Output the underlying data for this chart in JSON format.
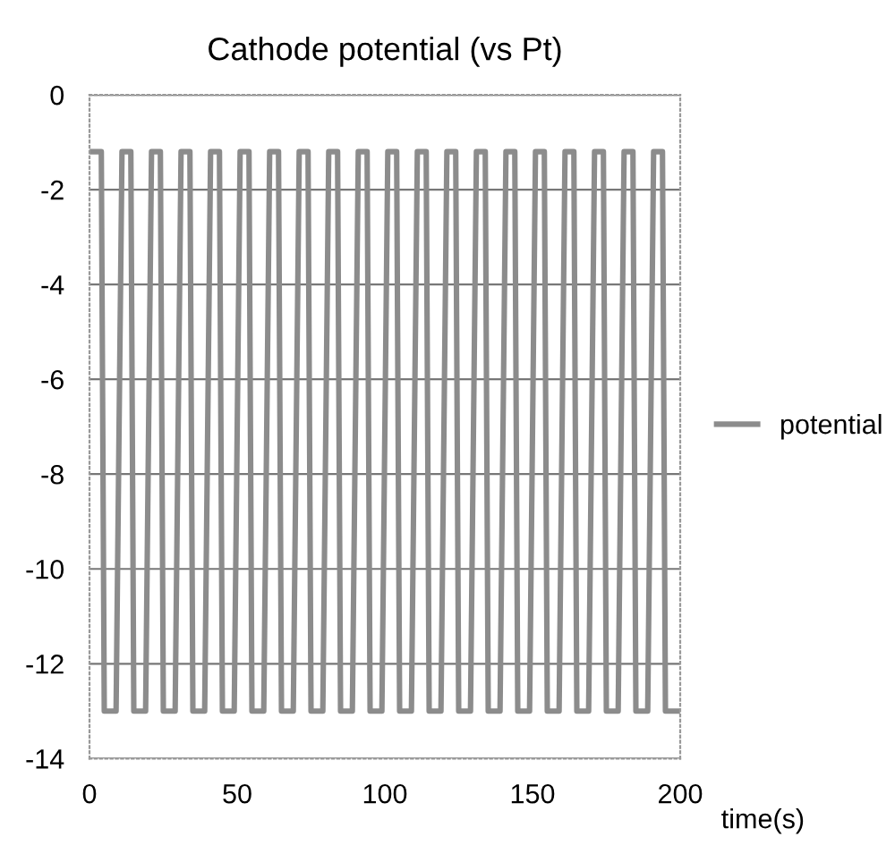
{
  "chart_data": {
    "type": "line",
    "title": "Cathode potential (vs Pt)",
    "xlabel": "time(s)",
    "xlim": [
      0,
      200
    ],
    "xticks": [
      0,
      50,
      100,
      150,
      200
    ],
    "ylim": [
      -14,
      0
    ],
    "yticks": [
      0,
      -2,
      -4,
      -6,
      -8,
      -10,
      -12,
      -14
    ],
    "grid": "y",
    "legend": "right",
    "marker": "none",
    "line_style": "solid",
    "series": [
      {
        "name": "potential",
        "color": "#8c8c8c",
        "x": [
          1,
          4,
          5,
          9,
          11,
          14,
          15,
          19,
          21,
          24,
          25,
          29,
          31,
          34,
          35,
          39,
          41,
          44,
          45,
          49,
          51,
          54,
          55,
          59,
          61,
          64,
          65,
          69,
          71,
          74,
          75,
          79,
          81,
          84,
          85,
          89,
          91,
          94,
          95,
          99,
          101,
          104,
          105,
          109,
          111,
          114,
          115,
          119,
          121,
          124,
          125,
          129,
          131,
          134,
          135,
          139,
          141,
          144,
          145,
          149,
          151,
          154,
          155,
          159,
          161,
          164,
          165,
          169,
          171,
          174,
          175,
          179,
          181,
          184,
          185,
          189,
          191,
          194,
          195,
          199
        ],
        "values": [
          -1.2,
          -1.2,
          -13,
          -13,
          -1.2,
          -1.2,
          -13,
          -13,
          -1.2,
          -1.2,
          -13,
          -13,
          -1.2,
          -1.2,
          -13,
          -13,
          -1.2,
          -1.2,
          -13,
          -13,
          -1.2,
          -1.2,
          -13,
          -13,
          -1.2,
          -1.2,
          -13,
          -13,
          -1.2,
          -1.2,
          -13,
          -13,
          -1.2,
          -1.2,
          -13,
          -13,
          -1.2,
          -1.2,
          -13,
          -13,
          -1.2,
          -1.2,
          -13,
          -13,
          -1.2,
          -1.2,
          -13,
          -13,
          -1.2,
          -1.2,
          -13,
          -13,
          -1.2,
          -1.2,
          -13,
          -13,
          -1.2,
          -1.2,
          -13,
          -13,
          -1.2,
          -1.2,
          -13,
          -13,
          -1.2,
          -1.2,
          -13,
          -13,
          -1.2,
          -1.2,
          -13,
          -13,
          -1.2,
          -1.2,
          -13,
          -13,
          -1.2,
          -1.2,
          -13,
          -13
        ]
      }
    ]
  }
}
